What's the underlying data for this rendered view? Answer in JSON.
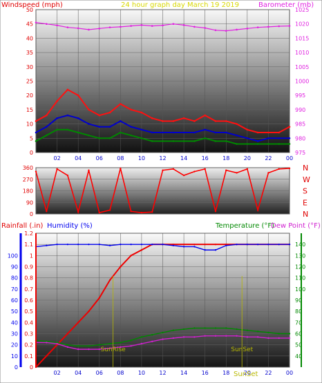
{
  "colors": {
    "wind": "#e00000",
    "gust": "#ff1010",
    "avgwind": "#0000cc",
    "baro": "#e020e0",
    "dir": "#ff0000",
    "rain": "#ee0000",
    "humidity": "#0000ee",
    "temp": "#008800",
    "dew": "#d020d0",
    "title": "#d8d800",
    "sun": "#b8b800"
  },
  "header": {
    "windspeed_label": "Windspeed (mph)",
    "title": "24 hour graph day   March 19 2019",
    "barometer_label": "Barometer (mb)"
  },
  "chart_data": [
    {
      "type": "line",
      "title": "24 hour graph day   March 19 2019",
      "ylabel": "Windspeed (mph)",
      "y2label": "Barometer (mb)",
      "ylim": [
        0,
        50
      ],
      "y2lim": [
        975,
        1025
      ],
      "yticks": [
        0,
        5,
        10,
        15,
        20,
        25,
        30,
        35,
        40,
        45,
        50
      ],
      "y2ticks": [
        975,
        980,
        985,
        990,
        995,
        1000,
        1005,
        1010,
        1015,
        1020,
        1025
      ],
      "xticks": [
        "02",
        "04",
        "06",
        "08",
        "10",
        "12",
        "14",
        "16",
        "18",
        "20",
        "22",
        "00"
      ],
      "x": [
        0,
        1,
        2,
        3,
        4,
        5,
        6,
        7,
        8,
        9,
        10,
        11,
        12,
        13,
        14,
        15,
        16,
        17,
        18,
        19,
        20,
        21,
        22,
        23,
        24
      ],
      "series": [
        {
          "name": "Windspeed gust",
          "values": [
            11,
            13,
            18,
            22,
            20,
            15,
            13,
            14,
            17,
            15,
            14,
            12,
            11,
            11,
            12,
            11,
            13,
            11,
            11,
            10,
            8,
            7,
            7,
            7,
            9
          ]
        },
        {
          "name": "Windspeed average",
          "values": [
            7,
            9,
            12,
            13,
            12,
            10,
            9,
            9,
            11,
            9,
            8,
            7,
            7,
            7,
            7,
            7,
            8,
            7,
            7,
            6,
            5,
            4,
            5,
            5,
            5
          ]
        },
        {
          "name": "Windspeed",
          "values": [
            4,
            6,
            8,
            8,
            7,
            6,
            5,
            5,
            7,
            6,
            5,
            4,
            4,
            4,
            4,
            4,
            5,
            4,
            4,
            3,
            3,
            3,
            3,
            3,
            3
          ]
        },
        {
          "name": "Barometer",
          "values": [
            1020.5,
            1020,
            1019.5,
            1018.8,
            1018.5,
            1018,
            1018.4,
            1018.8,
            1019,
            1019.3,
            1019.6,
            1019.3,
            1019.5,
            1020,
            1019.6,
            1019,
            1018.6,
            1017.8,
            1017.6,
            1018,
            1018.4,
            1018.8,
            1019,
            1019.2,
            1019.3
          ]
        }
      ]
    },
    {
      "type": "line",
      "ylim": [
        0,
        360
      ],
      "yticks": [
        0,
        90,
        180,
        270,
        360
      ],
      "direction_labels": [
        "N",
        "W",
        "S",
        "E",
        "N"
      ],
      "x": [
        0,
        1,
        2,
        3,
        4,
        5,
        6,
        7,
        8,
        9,
        10,
        11,
        12,
        13,
        14,
        15,
        16,
        17,
        18,
        19,
        20,
        21,
        22,
        23,
        24
      ],
      "series": [
        {
          "name": "Wind direction",
          "values": [
            330,
            20,
            350,
            300,
            15,
            340,
            10,
            30,
            355,
            20,
            10,
            15,
            340,
            350,
            300,
            330,
            350,
            20,
            340,
            320,
            350,
            30,
            320,
            350,
            355
          ]
        }
      ]
    },
    {
      "type": "line",
      "ylabel": "Rainfall (.in)",
      "ylabel2": "Humidity (%)",
      "y2label": "Temperature (°F)",
      "y2label2": "Dew Point (°F)",
      "ylim": [
        0,
        1.2
      ],
      "yticks": [
        0,
        0.1,
        0.2,
        0.3,
        0.4,
        0.5,
        0.6,
        0.7,
        0.8,
        0.9,
        1,
        1.1,
        1.2
      ],
      "ytick_labels_hum": [
        "0",
        "10",
        "20",
        "30",
        "40",
        "50",
        "60",
        "70",
        "80",
        "90",
        "100"
      ],
      "y2lim": [
        30,
        150
      ],
      "y2ticks": [
        40,
        50,
        60,
        70,
        80,
        90,
        100,
        110,
        120,
        130,
        140
      ],
      "xticks": [
        "02",
        "04",
        "06",
        "08",
        "10",
        "12",
        "14",
        "16",
        "18",
        "20",
        "22",
        "00"
      ],
      "x": [
        0,
        1,
        2,
        3,
        4,
        5,
        6,
        7,
        8,
        9,
        10,
        11,
        12,
        13,
        14,
        15,
        16,
        17,
        18,
        19,
        20,
        21,
        22,
        23,
        24
      ],
      "series": [
        {
          "name": "Rainfall",
          "values": [
            0,
            0.1,
            0.2,
            0.3,
            0.4,
            0.5,
            0.62,
            0.78,
            0.9,
            1.0,
            1.05,
            1.1,
            1.1,
            1.1,
            1.1,
            1.1,
            1.1,
            1.1,
            1.1,
            1.1,
            1.1,
            1.1,
            1.1,
            1.1,
            1.1
          ]
        },
        {
          "name": "Humidity",
          "values": [
            1.08,
            1.09,
            1.1,
            1.1,
            1.1,
            1.1,
            1.1,
            1.09,
            1.1,
            1.1,
            1.1,
            1.1,
            1.1,
            1.09,
            1.08,
            1.08,
            1.05,
            1.05,
            1.09,
            1.1,
            1.1,
            1.1,
            1.1,
            1.1,
            1.1
          ]
        },
        {
          "name": "Temperature",
          "values": [
            0.24,
            0.23,
            0.22,
            0.2,
            0.19,
            0.19,
            0.2,
            0.21,
            0.22,
            0.24,
            0.27,
            0.29,
            0.31,
            0.33,
            0.34,
            0.35,
            0.35,
            0.35,
            0.35,
            0.34,
            0.33,
            0.32,
            0.31,
            0.3,
            0.3
          ]
        },
        {
          "name": "Dew Point",
          "values": [
            0.22,
            0.22,
            0.21,
            0.18,
            0.16,
            0.16,
            0.16,
            0.17,
            0.18,
            0.19,
            0.21,
            0.23,
            0.25,
            0.26,
            0.27,
            0.27,
            0.28,
            0.28,
            0.28,
            0.28,
            0.27,
            0.27,
            0.26,
            0.26,
            0.26
          ]
        }
      ],
      "annotations": [
        {
          "text": "SunRise",
          "x": 7.3
        },
        {
          "text": "SunSet",
          "x": 19.5
        }
      ]
    }
  ],
  "footer": {
    "sunset_label": "SunSet"
  }
}
